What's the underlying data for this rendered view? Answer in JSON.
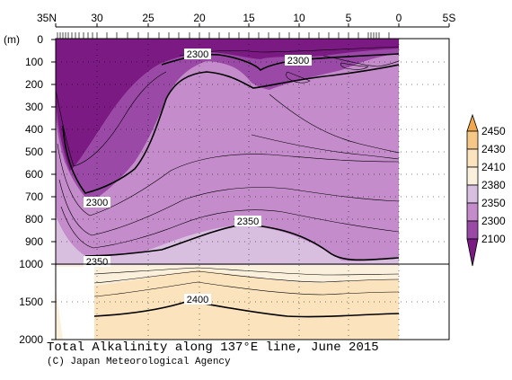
{
  "chart_data": {
    "type": "heatmap",
    "title": "Total Alkalinity along 137°E line, June 2015",
    "credit": "(C) Japan Meteorological Agency",
    "x_axis": {
      "label_ticks": [
        "35N",
        "30",
        "25",
        "20",
        "15",
        "10",
        "5",
        "0",
        "5S"
      ],
      "range": [
        "35N",
        "5S"
      ]
    },
    "y_axis": {
      "unit": "(m)",
      "upper_ticks": [
        0,
        100,
        200,
        300,
        400,
        500,
        600,
        700,
        800,
        900,
        1000
      ],
      "lower_ticks": [
        1500,
        2000
      ],
      "range": [
        0,
        2000
      ]
    },
    "legend": {
      "levels": [
        "2450",
        "2430",
        "2410",
        "2380",
        "2350",
        "2300",
        "2100"
      ],
      "colors": [
        "#f2a74d",
        "#f6c887",
        "#fae3bd",
        "#fbf0dc",
        "#d9bfdf",
        "#c48ccb",
        "#9a4aa6",
        "#7a1a82"
      ],
      "placement": "right"
    },
    "contour_labels": [
      "2300",
      "2300",
      "2300",
      "2350",
      "2350",
      "2400"
    ],
    "grid": "dotted"
  }
}
